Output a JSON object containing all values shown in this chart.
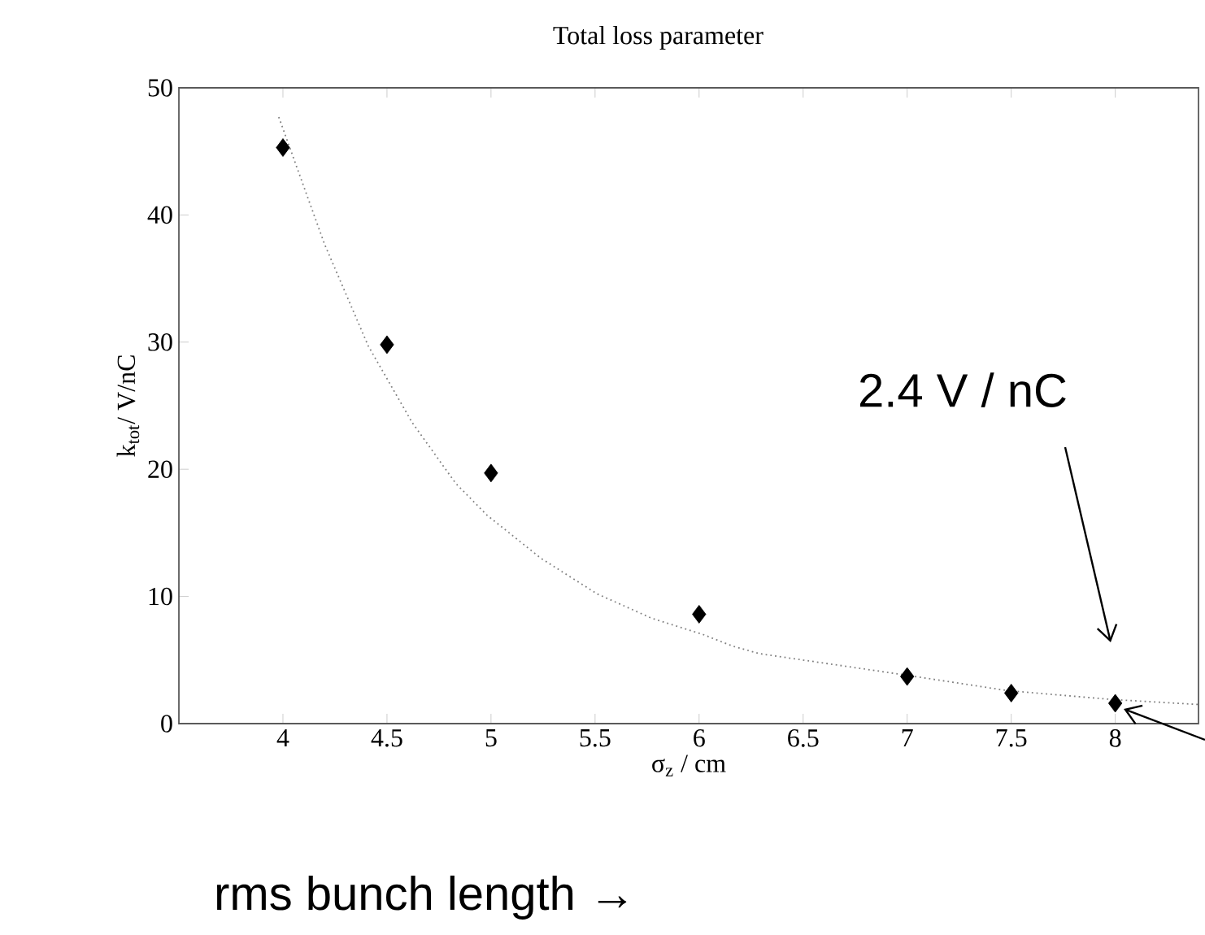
{
  "chart_data": {
    "type": "scatter",
    "title": "Total loss parameter",
    "xlabel": "σ$_{z}$ / cm",
    "ylabel": "k$_{tot}$/ V/nC",
    "xlim": [
      3.5,
      8.4
    ],
    "ylim": [
      0,
      50
    ],
    "xticks": [
      4,
      4.5,
      5,
      5.5,
      6,
      6.5,
      7,
      7.5,
      8
    ],
    "yticks": [
      0,
      10,
      20,
      30,
      40,
      50
    ],
    "series": [
      {
        "color": "#000000",
        "marker": "diamond",
        "x": [
          4,
          4.5,
          5,
          6,
          7,
          7.5,
          8
        ],
        "values": [
          45.3,
          29.8,
          19.7,
          8.6,
          3.7,
          2.4,
          1.6
        ]
      },
      {
        "type": "line",
        "color": "#808080",
        "line_style": "dotted",
        "marker": "none",
        "x": [
          3.98,
          4.2,
          4.41,
          4.62,
          4.83,
          4.98,
          5.24,
          5.51,
          5.77,
          6.02,
          6.16,
          6.29,
          7,
          7.48,
          7.98,
          8.4
        ],
        "values": [
          47.7,
          37.7,
          29.7,
          23.7,
          18.9,
          16.4,
          13.0,
          10.2,
          8.3,
          7.0,
          6.1,
          5.5,
          3.8,
          2.6,
          1.9,
          1.5
        ]
      }
    ],
    "annotations": [
      "2.4 V / nC",
      "rms bunch length →"
    ]
  }
}
